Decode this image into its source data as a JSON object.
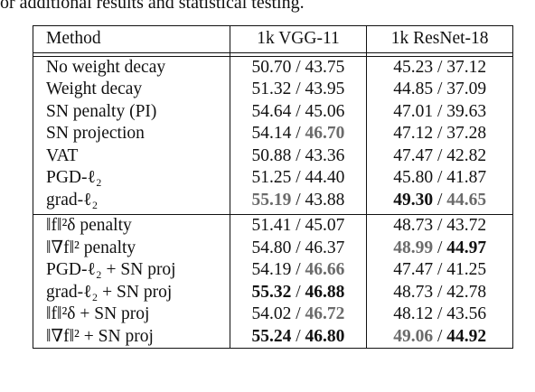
{
  "caption_fragment": "or additional results and statistical testing.",
  "headers": [
    "Method",
    "1k VGG-11",
    "1k ResNet-18"
  ],
  "separator": " / ",
  "rows": [
    {
      "method": "No weight decay",
      "vgg": [
        {
          "v": "50.70",
          "s": "plain"
        },
        {
          "v": "43.75",
          "s": "plain"
        }
      ],
      "resnet": [
        {
          "v": "45.23",
          "s": "plain"
        },
        {
          "v": "37.12",
          "s": "plain"
        }
      ]
    },
    {
      "method": "Weight decay",
      "vgg": [
        {
          "v": "51.32",
          "s": "plain"
        },
        {
          "v": "43.95",
          "s": "plain"
        }
      ],
      "resnet": [
        {
          "v": "44.85",
          "s": "plain"
        },
        {
          "v": "37.09",
          "s": "plain"
        }
      ]
    },
    {
      "method": "SN penalty (PI)",
      "vgg": [
        {
          "v": "54.64",
          "s": "plain"
        },
        {
          "v": "45.06",
          "s": "plain"
        }
      ],
      "resnet": [
        {
          "v": "47.01",
          "s": "plain"
        },
        {
          "v": "39.63",
          "s": "plain"
        }
      ]
    },
    {
      "method": "SN projection",
      "vgg": [
        {
          "v": "54.14",
          "s": "plain"
        },
        {
          "v": "46.70",
          "s": "gray"
        }
      ],
      "resnet": [
        {
          "v": "47.12",
          "s": "plain"
        },
        {
          "v": "37.28",
          "s": "plain"
        }
      ]
    },
    {
      "method": "VAT",
      "vgg": [
        {
          "v": "50.88",
          "s": "plain"
        },
        {
          "v": "43.36",
          "s": "plain"
        }
      ],
      "resnet": [
        {
          "v": "47.47",
          "s": "plain"
        },
        {
          "v": "42.82",
          "s": "plain"
        }
      ]
    },
    {
      "method": "PGD-ℓ₂",
      "vgg": [
        {
          "v": "51.25",
          "s": "plain"
        },
        {
          "v": "44.40",
          "s": "plain"
        }
      ],
      "resnet": [
        {
          "v": "45.80",
          "s": "plain"
        },
        {
          "v": "41.87",
          "s": "plain"
        }
      ]
    },
    {
      "method": "grad-ℓ₂",
      "vgg": [
        {
          "v": "55.19",
          "s": "gray"
        },
        {
          "v": "43.88",
          "s": "plain"
        }
      ],
      "resnet": [
        {
          "v": "49.30",
          "s": "bold"
        },
        {
          "v": "44.65",
          "s": "gray"
        }
      ]
    },
    {
      "method": "‖f‖²δ penalty",
      "vgg": [
        {
          "v": "51.41",
          "s": "plain"
        },
        {
          "v": "45.07",
          "s": "plain"
        }
      ],
      "resnet": [
        {
          "v": "48.73",
          "s": "plain"
        },
        {
          "v": "43.72",
          "s": "plain"
        }
      ]
    },
    {
      "method": "‖∇f‖² penalty",
      "vgg": [
        {
          "v": "54.80",
          "s": "plain"
        },
        {
          "v": "46.37",
          "s": "plain"
        }
      ],
      "resnet": [
        {
          "v": "48.99",
          "s": "gray"
        },
        {
          "v": "44.97",
          "s": "bold"
        }
      ]
    },
    {
      "method": "PGD-ℓ₂ + SN proj",
      "vgg": [
        {
          "v": "54.19",
          "s": "plain"
        },
        {
          "v": "46.66",
          "s": "gray"
        }
      ],
      "resnet": [
        {
          "v": "47.47",
          "s": "plain"
        },
        {
          "v": "41.25",
          "s": "plain"
        }
      ]
    },
    {
      "method": "grad-ℓ₂ + SN proj",
      "vgg": [
        {
          "v": "55.32",
          "s": "bold"
        },
        {
          "v": "46.88",
          "s": "bold"
        }
      ],
      "resnet": [
        {
          "v": "48.73",
          "s": "plain"
        },
        {
          "v": "42.78",
          "s": "plain"
        }
      ]
    },
    {
      "method": "‖f‖²δ + SN proj",
      "vgg": [
        {
          "v": "54.02",
          "s": "plain"
        },
        {
          "v": "46.72",
          "s": "gray"
        }
      ],
      "resnet": [
        {
          "v": "48.12",
          "s": "plain"
        },
        {
          "v": "43.56",
          "s": "plain"
        }
      ]
    },
    {
      "method": "‖∇f‖² + SN proj",
      "vgg": [
        {
          "v": "55.24",
          "s": "bold"
        },
        {
          "v": "46.80",
          "s": "bold"
        }
      ],
      "resnet": [
        {
          "v": "49.06",
          "s": "gray"
        },
        {
          "v": "44.92",
          "s": "bold"
        }
      ]
    }
  ],
  "chart_data": {
    "type": "table",
    "columns": [
      "Method",
      "1k VGG-11",
      "1k ResNet-18"
    ],
    "rows": [
      [
        "No weight decay",
        "50.70 / 43.75",
        "45.23 / 37.12"
      ],
      [
        "Weight decay",
        "51.32 / 43.95",
        "44.85 / 37.09"
      ],
      [
        "SN penalty (PI)",
        "54.64 / 45.06",
        "47.01 / 39.63"
      ],
      [
        "SN projection",
        "54.14 / 46.70",
        "47.12 / 37.28"
      ],
      [
        "VAT",
        "50.88 / 43.36",
        "47.47 / 42.82"
      ],
      [
        "PGD-ℓ₂",
        "51.25 / 44.40",
        "45.80 / 41.87"
      ],
      [
        "grad-ℓ₂",
        "55.19 / 43.88",
        "49.30 / 44.65"
      ],
      [
        "‖f‖²δ penalty",
        "51.41 / 45.07",
        "48.73 / 43.72"
      ],
      [
        "‖∇f‖² penalty",
        "54.80 / 46.37",
        "48.99 / 44.97"
      ],
      [
        "PGD-ℓ₂ + SN proj",
        "54.19 / 46.66",
        "47.47 / 41.25"
      ],
      [
        "grad-ℓ₂ + SN proj",
        "55.32 / 46.88",
        "48.73 / 42.78"
      ],
      [
        "‖f‖²δ + SN proj",
        "54.02 / 46.72",
        "48.12 / 43.56"
      ],
      [
        "‖∇f‖² + SN proj",
        "55.24 / 46.80",
        "49.06 / 44.92"
      ]
    ]
  }
}
